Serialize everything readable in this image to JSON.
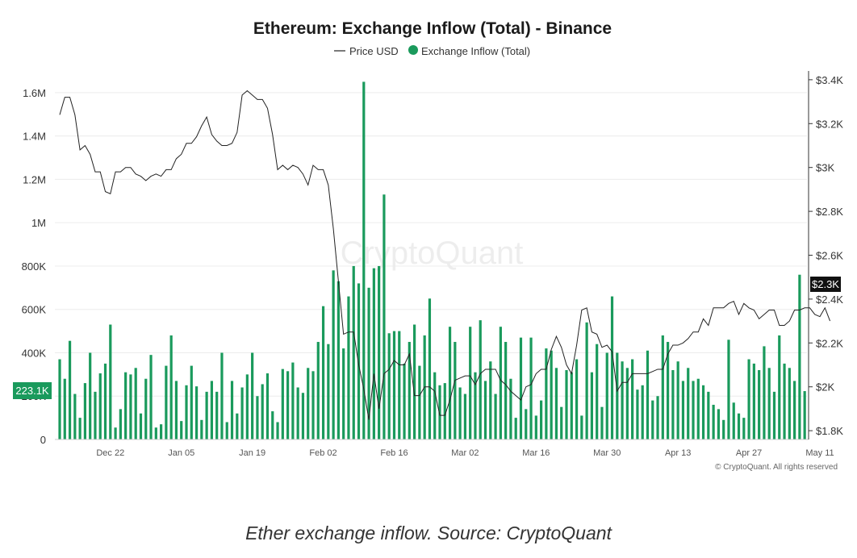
{
  "colors": {
    "bar": "#1a9a5c",
    "line": "#222222",
    "grid": "#ececec",
    "callout_bg": "#1a9a5c",
    "price_callout_bg": "#111111"
  },
  "watermark": "CryptoQuant",
  "copyright": "© CryptoQuant. All rights reserved",
  "caption": "Ether exchange inflow. Source: CryptoQuant",
  "chart_data": {
    "type": "bar",
    "title": "Ethereum: Exchange Inflow (Total) - Binance",
    "legend": {
      "placement": "top-center",
      "entries": [
        "Price USD",
        "Exchange Inflow (Total)"
      ]
    },
    "grid": true,
    "x_tick_labels": [
      "Dec 22",
      "Jan 05",
      "Jan 19",
      "Feb 02",
      "Feb 16",
      "Mar 02",
      "Mar 16",
      "Mar 30",
      "Apr 13",
      "Apr 27",
      "May 11"
    ],
    "x_tick_days": [
      10,
      24,
      38,
      52,
      66,
      80,
      94,
      108,
      122,
      136,
      150
    ],
    "y_left": {
      "ticks": [
        "0",
        "200K",
        "400K",
        "600K",
        "800K",
        "1M",
        "1.2M",
        "1.4M",
        "1.6M"
      ],
      "tick_values": [
        0,
        200000,
        400000,
        600000,
        800000,
        1000000,
        1200000,
        1400000,
        1600000
      ],
      "ylim": [
        0,
        1700000
      ]
    },
    "y_right": {
      "ticks": [
        "$1.8K",
        "$2K",
        "$2.2K",
        "$2.4K",
        "$2.6K",
        "$2.8K",
        "$3K",
        "$3.2K",
        "$3.4K"
      ],
      "tick_values": [
        1800,
        2000,
        2200,
        2400,
        2600,
        2800,
        3000,
        3200,
        3400
      ],
      "ylim": [
        1760,
        3440
      ]
    },
    "series": [
      {
        "name": "Exchange Inflow (Total)",
        "type": "bar",
        "values": [
          370000,
          280000,
          455000,
          210000,
          100000,
          260000,
          400000,
          220000,
          305000,
          350000,
          530000,
          55000,
          140000,
          310000,
          300000,
          330000,
          120000,
          280000,
          390000,
          55000,
          70000,
          340000,
          480000,
          270000,
          85000,
          250000,
          340000,
          245000,
          90000,
          220000,
          270000,
          220000,
          400000,
          80000,
          270000,
          120000,
          240000,
          300000,
          400000,
          200000,
          255000,
          305000,
          130000,
          80000,
          325000,
          315000,
          355000,
          240000,
          215000,
          330000,
          315000,
          450000,
          615000,
          440000,
          780000,
          730000,
          420000,
          660000,
          800000,
          720000,
          1650000,
          700000,
          790000,
          800000,
          1130000,
          490000,
          500000,
          500000,
          350000,
          450000,
          530000,
          340000,
          480000,
          650000,
          310000,
          250000,
          260000,
          520000,
          450000,
          240000,
          210000,
          520000,
          310000,
          550000,
          270000,
          360000,
          210000,
          520000,
          450000,
          280000,
          100000,
          470000,
          140000,
          470000,
          110000,
          180000,
          420000,
          410000,
          330000,
          150000,
          320000,
          310000,
          370000,
          110000,
          540000,
          310000,
          440000,
          150000,
          400000,
          660000,
          400000,
          360000,
          330000,
          370000,
          230000,
          250000,
          410000,
          180000,
          200000,
          480000,
          450000,
          320000,
          360000,
          270000,
          330000,
          270000,
          280000,
          250000,
          220000,
          160000,
          140000,
          90000,
          460000,
          170000,
          120000,
          100000,
          370000,
          350000,
          320000,
          430000,
          330000,
          220000,
          480000,
          350000,
          330000,
          270000,
          760000,
          223100
        ]
      },
      {
        "name": "Price USD",
        "type": "line",
        "values": [
          3240,
          3320,
          3320,
          3240,
          3080,
          3100,
          3060,
          2980,
          2980,
          2890,
          2880,
          2980,
          2980,
          3000,
          3000,
          2970,
          2960,
          2940,
          2960,
          2970,
          2960,
          2990,
          2990,
          3040,
          3060,
          3110,
          3110,
          3140,
          3190,
          3230,
          3150,
          3120,
          3100,
          3100,
          3110,
          3160,
          3330,
          3350,
          3330,
          3310,
          3310,
          3270,
          3150,
          2990,
          3010,
          2990,
          3010,
          3000,
          2970,
          2920,
          3010,
          2990,
          2990,
          2920,
          2720,
          2480,
          2240,
          2250,
          2250,
          2100,
          1990,
          1850,
          2060,
          1900,
          2060,
          2080,
          2120,
          2100,
          2100,
          2150,
          1960,
          1960,
          2000,
          2000,
          1980,
          1870,
          1870,
          1940,
          2030,
          2040,
          2050,
          2050,
          2010,
          2060,
          2080,
          2080,
          2080,
          2030,
          2010,
          1980,
          1960,
          1940,
          2000,
          2010,
          2060,
          2080,
          2080,
          2170,
          2230,
          2180,
          2100,
          2060,
          2190,
          2350,
          2360,
          2250,
          2240,
          2180,
          2190,
          2160,
          1980,
          2020,
          2020,
          2060,
          2060,
          2060,
          2060,
          2070,
          2080,
          2080,
          2150,
          2190,
          2190,
          2200,
          2220,
          2250,
          2250,
          2310,
          2280,
          2360,
          2360,
          2360,
          2380,
          2390,
          2330,
          2380,
          2360,
          2350,
          2310,
          2330,
          2350,
          2350,
          2280,
          2280,
          2300,
          2350,
          2350,
          2360,
          2360,
          2330,
          2320,
          2360,
          2300
        ],
        "last_value_label": "$2.3K"
      }
    ],
    "callouts": {
      "left_axis": "223.1K",
      "right_axis": "$2.3K"
    }
  }
}
